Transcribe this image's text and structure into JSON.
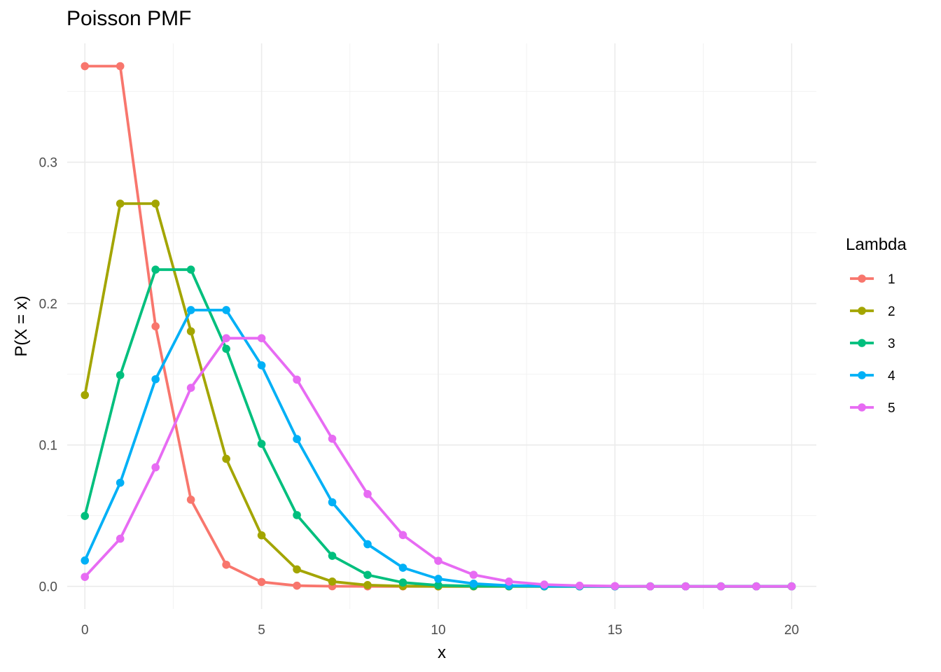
{
  "chart_data": {
    "type": "line",
    "title": "Poisson PMF",
    "xlabel": "x",
    "ylabel": "P(X = x)",
    "xlim": [
      -0.5,
      20.7
    ],
    "ylim": [
      -0.016,
      0.384
    ],
    "x_ticks": [
      0,
      5,
      10,
      15,
      20
    ],
    "x_tick_labels": [
      "0",
      "5",
      "10",
      "15",
      "20"
    ],
    "y_ticks": [
      0.0,
      0.1,
      0.2,
      0.3
    ],
    "y_tick_labels": [
      "0.0",
      "0.1",
      "0.2",
      "0.3"
    ],
    "grid": true,
    "legend": {
      "title": "Lambda",
      "placement": "right"
    },
    "x": [
      0,
      1,
      2,
      3,
      4,
      5,
      6,
      7,
      8,
      9,
      10,
      11,
      12,
      13,
      14,
      15,
      16,
      17,
      18,
      19,
      20
    ],
    "series": [
      {
        "name": "1",
        "color": "#F8766D",
        "values": [
          0.3679,
          0.3679,
          0.1839,
          0.0613,
          0.0153,
          0.0031,
          0.0005,
          0.0001,
          0.0,
          0.0,
          0.0,
          0.0,
          0.0,
          0.0,
          0.0,
          0.0,
          0.0,
          0.0,
          0.0,
          0.0,
          0.0
        ]
      },
      {
        "name": "2",
        "color": "#A3A500",
        "values": [
          0.1353,
          0.2707,
          0.2707,
          0.1804,
          0.0902,
          0.0361,
          0.012,
          0.0034,
          0.0009,
          0.0002,
          0.0,
          0.0,
          0.0,
          0.0,
          0.0,
          0.0,
          0.0,
          0.0,
          0.0,
          0.0,
          0.0
        ]
      },
      {
        "name": "3",
        "color": "#00BF7D",
        "values": [
          0.0498,
          0.1494,
          0.224,
          0.224,
          0.168,
          0.1008,
          0.0504,
          0.0216,
          0.0081,
          0.0027,
          0.0008,
          0.0002,
          0.0001,
          0.0,
          0.0,
          0.0,
          0.0,
          0.0,
          0.0,
          0.0,
          0.0
        ]
      },
      {
        "name": "4",
        "color": "#00B0F6",
        "values": [
          0.0183,
          0.0733,
          0.1465,
          0.1954,
          0.1954,
          0.1563,
          0.1042,
          0.0595,
          0.0298,
          0.0132,
          0.0053,
          0.0019,
          0.0006,
          0.0002,
          0.0001,
          0.0,
          0.0,
          0.0,
          0.0,
          0.0,
          0.0
        ]
      },
      {
        "name": "5",
        "color": "#E76BF3",
        "values": [
          0.0067,
          0.0337,
          0.0842,
          0.1404,
          0.1755,
          0.1755,
          0.1462,
          0.1044,
          0.0653,
          0.0363,
          0.0181,
          0.0082,
          0.0034,
          0.0013,
          0.0005,
          0.0002,
          0.0,
          0.0,
          0.0,
          0.0,
          0.0
        ]
      }
    ]
  }
}
